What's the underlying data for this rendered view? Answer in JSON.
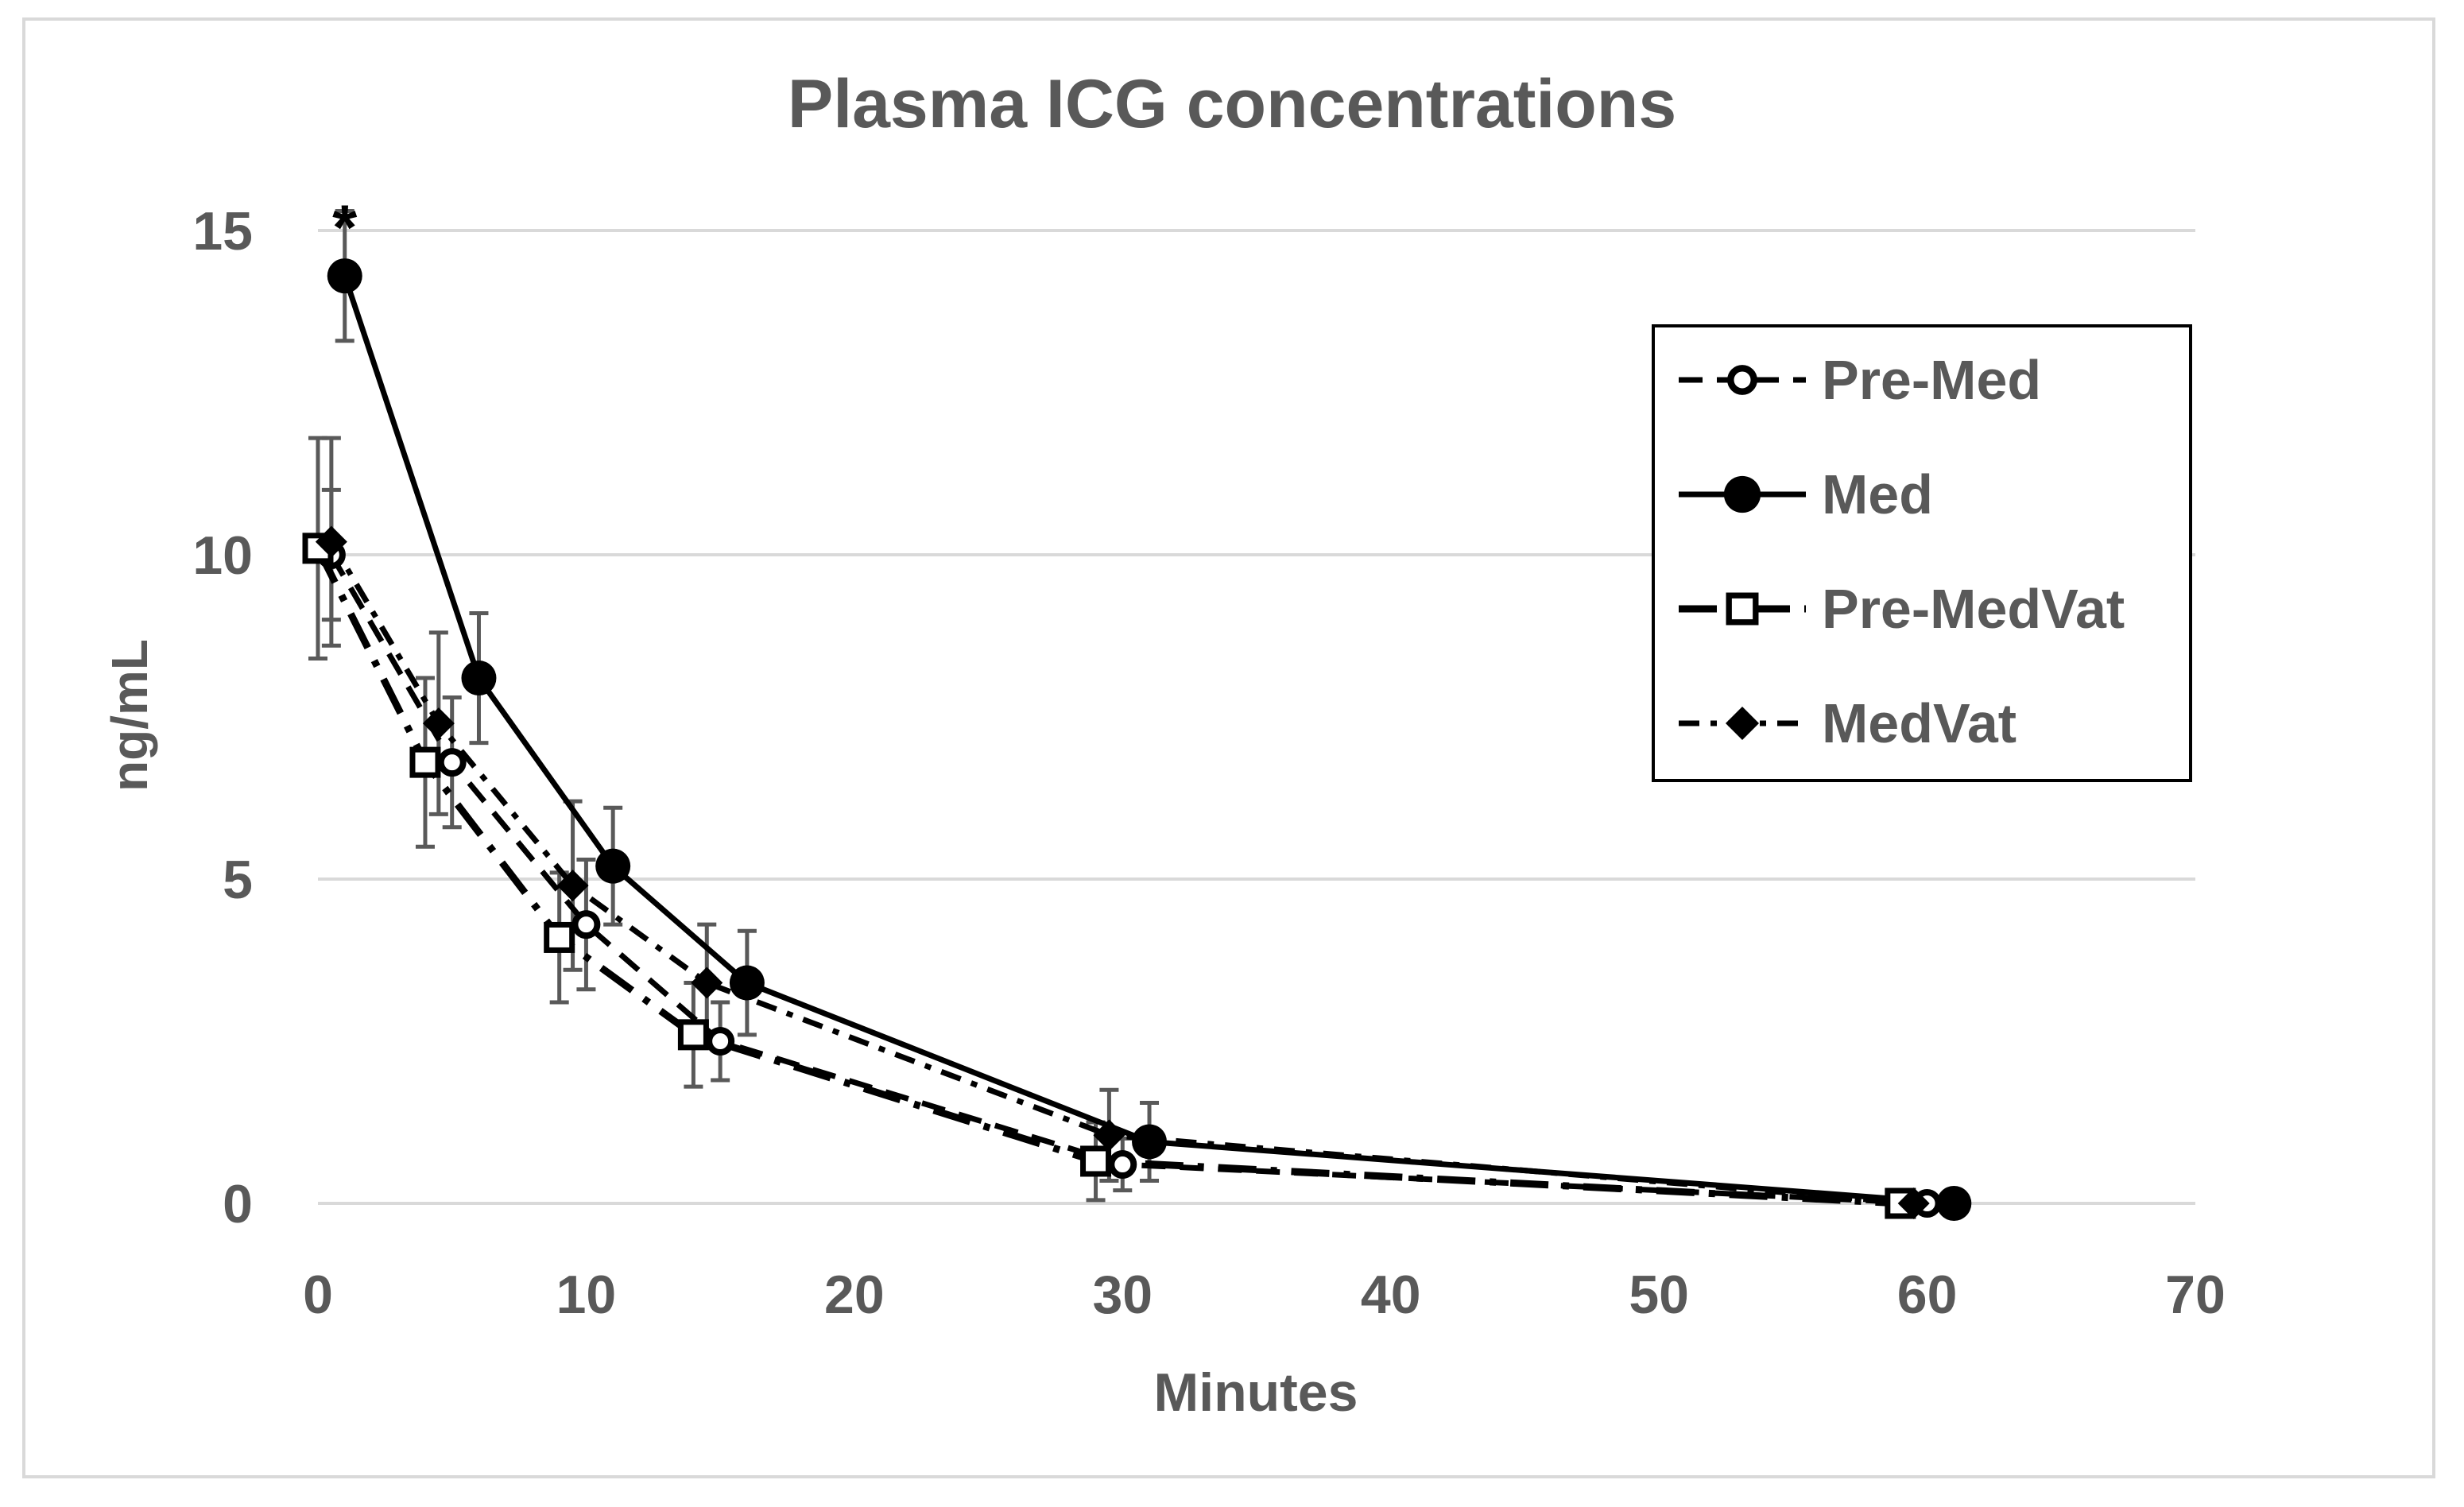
{
  "chart_data": {
    "type": "line",
    "title": "Plasma ICG concentrations",
    "xlabel": "Minutes",
    "ylabel": "ng/mL",
    "xlim": [
      0,
      70
    ],
    "ylim": [
      0,
      15
    ],
    "xticks": [
      "0",
      "10",
      "20",
      "30",
      "40",
      "50",
      "60",
      "70"
    ],
    "yticks": [
      "0",
      "5",
      "10",
      "15"
    ],
    "grid": "horizontal",
    "legend_position": "top-right",
    "annotations": [
      {
        "text": "*",
        "x": 1,
        "y": 15.2
      }
    ],
    "series": [
      {
        "name": "Pre-Med",
        "marker": "open-circle",
        "line": "dashed",
        "x": [
          0.5,
          5,
          10,
          15,
          30,
          60
        ],
        "y": [
          10.0,
          6.8,
          4.3,
          2.5,
          0.6,
          0.0
        ],
        "err": [
          1.0,
          1.0,
          1.0,
          0.6,
          0.4,
          0.05
        ]
      },
      {
        "name": "Med",
        "marker": "filled-circle",
        "line": "solid",
        "x": [
          1,
          6,
          11,
          16,
          31,
          61
        ],
        "y": [
          14.3,
          8.1,
          5.2,
          3.4,
          0.95,
          0.0
        ],
        "err": [
          1.0,
          1.0,
          0.9,
          0.8,
          0.6,
          0.05
        ]
      },
      {
        "name": "Pre-MedVat",
        "marker": "open-square",
        "line": "long-dash-dot",
        "x": [
          0,
          4,
          9,
          14,
          29,
          59
        ],
        "y": [
          10.1,
          6.8,
          4.1,
          2.6,
          0.65,
          0.0
        ],
        "err": [
          1.7,
          1.3,
          1.0,
          0.8,
          0.6,
          0.05
        ]
      },
      {
        "name": "MedVat",
        "marker": "filled-diamond",
        "line": "dash-dot",
        "x": [
          0.5,
          4.5,
          9.5,
          14.5,
          29.5,
          59.5
        ],
        "y": [
          10.2,
          7.4,
          4.9,
          3.4,
          1.05,
          0.0
        ],
        "err": [
          1.6,
          1.4,
          1.3,
          0.9,
          0.7,
          0.05
        ]
      }
    ]
  }
}
